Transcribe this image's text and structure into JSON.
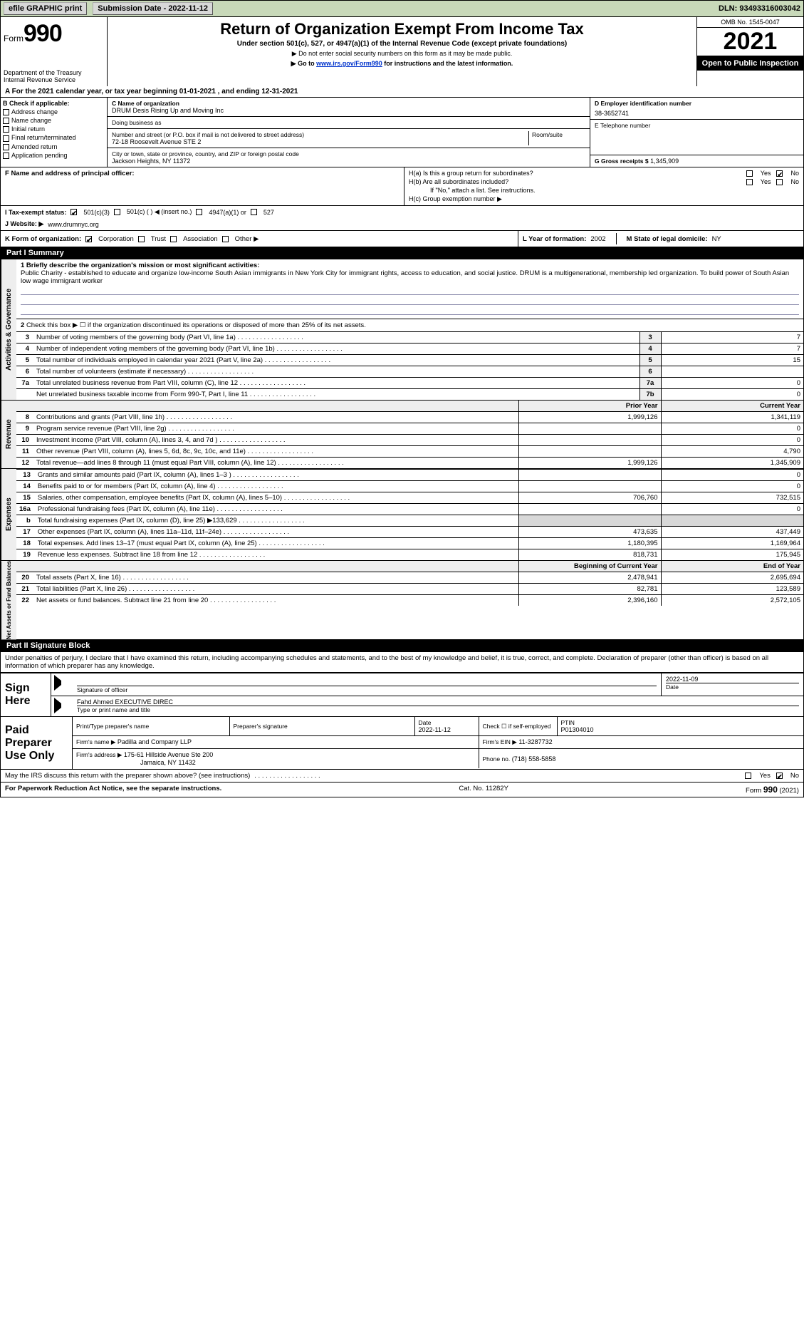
{
  "topbar": {
    "efile_label": "efile GRAPHIC print",
    "submission_label": "Submission Date - 2022-11-12",
    "dln_label": "DLN: 93493316003042"
  },
  "header": {
    "form_label": "Form",
    "form_number": "990",
    "dept": "Department of the Treasury",
    "irs": "Internal Revenue Service",
    "title": "Return of Organization Exempt From Income Tax",
    "subtitle": "Under section 501(c), 527, or 4947(a)(1) of the Internal Revenue Code (except private foundations)",
    "note1": "▶ Do not enter social security numbers on this form as it may be made public.",
    "note2_prefix": "▶ Go to ",
    "note2_link": "www.irs.gov/Form990",
    "note2_suffix": " for instructions and the latest information.",
    "omb": "OMB No. 1545-0047",
    "year": "2021",
    "open_pub": "Open to Public Inspection"
  },
  "period": {
    "text": "A For the 2021 calendar year, or tax year beginning 01-01-2021    , and ending 12-31-2021"
  },
  "box_b": {
    "label": "B Check if applicable:",
    "opts": [
      "Address change",
      "Name change",
      "Initial return",
      "Final return/terminated",
      "Amended return",
      "Application pending"
    ]
  },
  "box_c": {
    "name_label": "C Name of organization",
    "name": "DRUM Desis Rising Up and Moving Inc",
    "dba_label": "Doing business as",
    "dba": "",
    "addr_label": "Number and street (or P.O. box if mail is not delivered to street address)",
    "room_label": "Room/suite",
    "addr": "72-18 Roosevelt Avenue STE 2",
    "city_label": "City or town, state or province, country, and ZIP or foreign postal code",
    "city": "Jackson Heights, NY  11372"
  },
  "box_d": {
    "label": "D Employer identification number",
    "value": "38-3652741"
  },
  "box_e": {
    "label": "E Telephone number",
    "value": ""
  },
  "box_g": {
    "label": "G Gross receipts $",
    "value": "1,345,909"
  },
  "box_f": {
    "label": "F  Name and address of principal officer:",
    "value": ""
  },
  "box_h": {
    "h_a": "H(a)  Is this a group return for subordinates?",
    "h_b": "H(b)  Are all subordinates included?",
    "h_b_note": "If \"No,\" attach a list. See instructions.",
    "h_c": "H(c)  Group exemption number ▶",
    "yes": "Yes",
    "no": "No"
  },
  "box_i": {
    "label": "I   Tax-exempt status:",
    "o501c3": "501(c)(3)",
    "o501c": "501(c) (   ) ◀ (insert no.)",
    "o4947": "4947(a)(1) or",
    "o527": "527"
  },
  "box_j": {
    "label": "J   Website: ▶",
    "value": " www.drumnyc.org"
  },
  "box_k": {
    "label": "K Form of organization:",
    "corp": "Corporation",
    "trust": "Trust",
    "assoc": "Association",
    "other": "Other ▶"
  },
  "box_l": {
    "label": "L Year of formation:",
    "value": "2002"
  },
  "box_m": {
    "label": "M State of legal domicile:",
    "value": "NY"
  },
  "part1": {
    "header": "Part I      Summary",
    "line1_label": "1 Briefly describe the organization's mission or most significant activities:",
    "line1_text": "Public Charity - established to educate and organize low-income South Asian immigrants in New York City for immigrant rights, access to education, and social justice. DRUM is a multigenerational, membership led organization. To build power of South Asian low wage immigrant worker",
    "line2": "Check this box ▶ ☐  if the organization discontinued its operations or disposed of more than 25% of its net assets.",
    "rows_gov": [
      {
        "n": "3",
        "lbl": "Number of voting members of the governing body (Part VI, line 1a)",
        "box": "3",
        "val": "7"
      },
      {
        "n": "4",
        "lbl": "Number of independent voting members of the governing body (Part VI, line 1b)",
        "box": "4",
        "val": "7"
      },
      {
        "n": "5",
        "lbl": "Total number of individuals employed in calendar year 2021 (Part V, line 2a)",
        "box": "5",
        "val": "15"
      },
      {
        "n": "6",
        "lbl": "Total number of volunteers (estimate if necessary)",
        "box": "6",
        "val": ""
      },
      {
        "n": "7a",
        "lbl": "Total unrelated business revenue from Part VIII, column (C), line 12",
        "box": "7a",
        "val": "0"
      },
      {
        "n": "",
        "lbl": "Net unrelated business taxable income from Form 990-T, Part I, line 11",
        "box": "7b",
        "val": "0"
      }
    ],
    "prior_year": "Prior Year",
    "current_year": "Current Year",
    "rows_rev": [
      {
        "n": "8",
        "lbl": "Contributions and grants (Part VIII, line 1h)",
        "py": "1,999,126",
        "cy": "1,341,119"
      },
      {
        "n": "9",
        "lbl": "Program service revenue (Part VIII, line 2g)",
        "py": "",
        "cy": "0"
      },
      {
        "n": "10",
        "lbl": "Investment income (Part VIII, column (A), lines 3, 4, and 7d )",
        "py": "",
        "cy": "0"
      },
      {
        "n": "11",
        "lbl": "Other revenue (Part VIII, column (A), lines 5, 6d, 8c, 9c, 10c, and 11e)",
        "py": "",
        "cy": "4,790"
      },
      {
        "n": "12",
        "lbl": "Total revenue—add lines 8 through 11 (must equal Part VIII, column (A), line 12)",
        "py": "1,999,126",
        "cy": "1,345,909"
      }
    ],
    "rows_exp": [
      {
        "n": "13",
        "lbl": "Grants and similar amounts paid (Part IX, column (A), lines 1–3 )",
        "py": "",
        "cy": "0"
      },
      {
        "n": "14",
        "lbl": "Benefits paid to or for members (Part IX, column (A), line 4)",
        "py": "",
        "cy": "0"
      },
      {
        "n": "15",
        "lbl": "Salaries, other compensation, employee benefits (Part IX, column (A), lines 5–10)",
        "py": "706,760",
        "cy": "732,515"
      },
      {
        "n": "16a",
        "lbl": "Professional fundraising fees (Part IX, column (A), line 11e)",
        "py": "",
        "cy": "0"
      },
      {
        "n": "b",
        "lbl": "Total fundraising expenses (Part IX, column (D), line 25) ▶133,629",
        "py": "GREY",
        "cy": "GREY"
      },
      {
        "n": "17",
        "lbl": "Other expenses (Part IX, column (A), lines 11a–11d, 11f–24e)",
        "py": "473,635",
        "cy": "437,449"
      },
      {
        "n": "18",
        "lbl": "Total expenses. Add lines 13–17 (must equal Part IX, column (A), line 25)",
        "py": "1,180,395",
        "cy": "1,169,964"
      },
      {
        "n": "19",
        "lbl": "Revenue less expenses. Subtract line 18 from line 12",
        "py": "818,731",
        "cy": "175,945"
      }
    ],
    "beg_year": "Beginning of Current Year",
    "end_year": "End of Year",
    "rows_net": [
      {
        "n": "20",
        "lbl": "Total assets (Part X, line 16)",
        "py": "2,478,941",
        "cy": "2,695,694"
      },
      {
        "n": "21",
        "lbl": "Total liabilities (Part X, line 26)",
        "py": "82,781",
        "cy": "123,589"
      },
      {
        "n": "22",
        "lbl": "Net assets or fund balances. Subtract line 21 from line 20",
        "py": "2,396,160",
        "cy": "2,572,105"
      }
    ],
    "side_gov": "Activities & Governance",
    "side_rev": "Revenue",
    "side_exp": "Expenses",
    "side_net": "Net Assets or Fund Balances"
  },
  "part2": {
    "header": "Part II     Signature Block",
    "decl": "Under penalties of perjury, I declare that I have examined this return, including accompanying schedules and statements, and to the best of my knowledge and belief, it is true, correct, and complete. Declaration of preparer (other than officer) is based on all information of which preparer has any knowledge.",
    "sign_here": "Sign Here",
    "sig_officer": "Signature of officer",
    "date": "Date",
    "date_val": "2022-11-09",
    "name_title": "Fahd Ahmed  EXECUTIVE DIREC",
    "name_title_lbl": "Type or print name and title"
  },
  "paid": {
    "label": "Paid Preparer Use Only",
    "h1": "Print/Type preparer's name",
    "h2": "Preparer's signature",
    "h3": "Date",
    "h3v": "2022-11-12",
    "h4": "Check ☐ if self-employed",
    "h5": "PTIN",
    "h5v": "P01304010",
    "firm_name_lbl": "Firm's name      ▶",
    "firm_name": "Padilla and Company LLP",
    "firm_ein_lbl": "Firm's EIN ▶",
    "firm_ein": "11-3287732",
    "firm_addr_lbl": "Firm's address ▶",
    "firm_addr": "175-61 Hillside Avenue Ste 200",
    "firm_city": "Jamaica, NY  11432",
    "phone_lbl": "Phone no.",
    "phone": "(718) 558-5858"
  },
  "footer": {
    "discuss": "May the IRS discuss this return with the preparer shown above? (see instructions)",
    "yes": "Yes",
    "no": "No",
    "pra": "For Paperwork Reduction Act Notice, see the separate instructions.",
    "cat": "Cat. No. 11282Y",
    "form": "Form 990 (2021)"
  }
}
